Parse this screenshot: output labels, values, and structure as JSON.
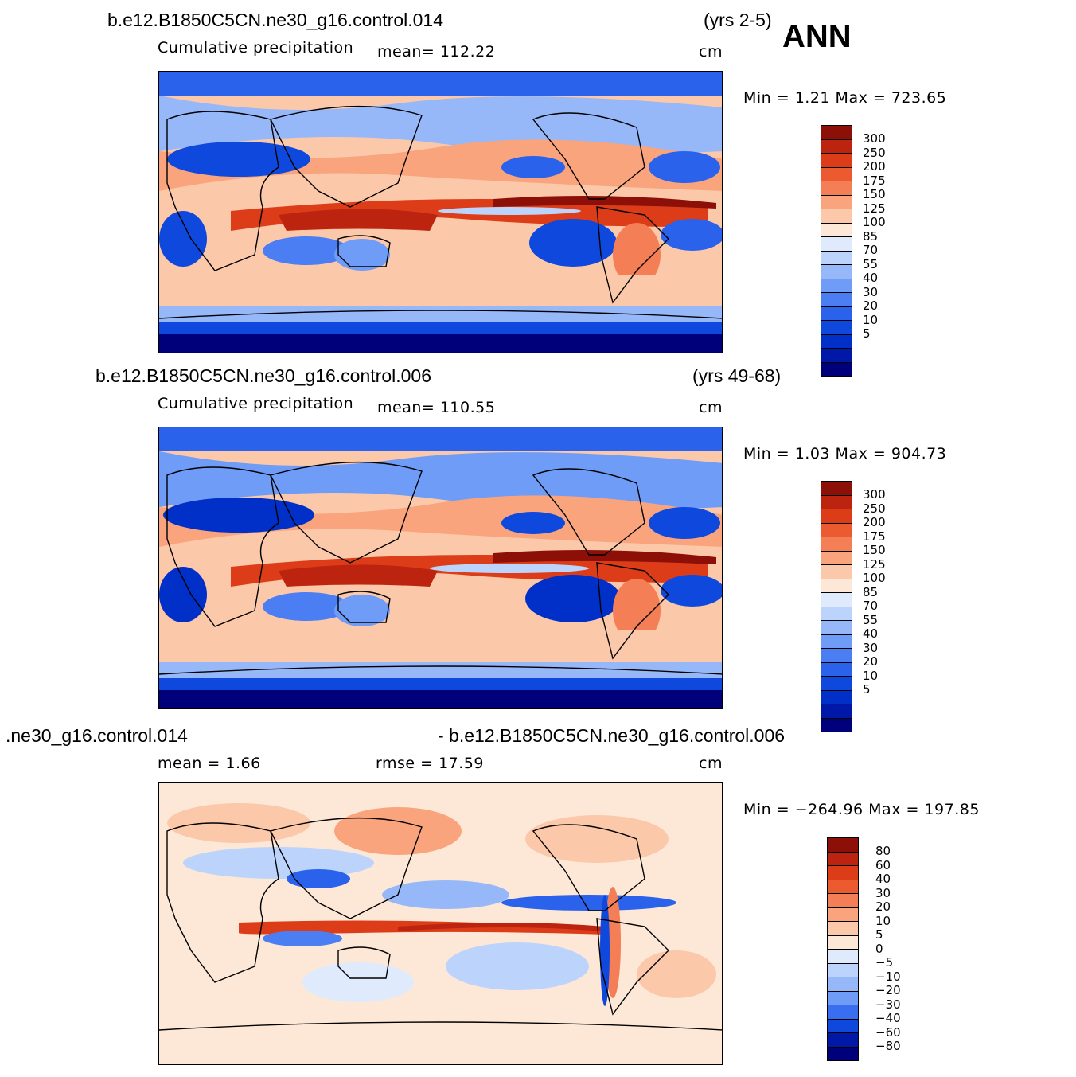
{
  "season": "ANN",
  "colors": {
    "abs_scale": [
      "#00007a",
      "#0018a8",
      "#0030c8",
      "#0f48dc",
      "#2a62ec",
      "#4a7ef2",
      "#6e9cf6",
      "#96b8f8",
      "#bcd4fb",
      "#dfeafd",
      "#fde8d8",
      "#fcc8aa",
      "#f9a47c",
      "#f47e55",
      "#ec5a30",
      "#dc3c18",
      "#bc2410",
      "#8c0f08"
    ],
    "diff_scale": [
      "#00007a",
      "#0018a8",
      "#0f48dc",
      "#3a6ef0",
      "#6e9cf6",
      "#96b8f8",
      "#bcd4fb",
      "#dfeafd",
      "#fde8d8",
      "#fcc8aa",
      "#f9a47c",
      "#f47e55",
      "#ec5a30",
      "#dc3c18",
      "#bc2410",
      "#8c0f08"
    ]
  },
  "panels": [
    {
      "case_left": "b.e12.B1850C5CN.ne30_g16.control.014",
      "case_right": "(yrs 2-5)",
      "variable": "Cumulative precipitation",
      "mean_text": "mean=  112.22",
      "units": "cm",
      "minmax": "Min  =    1.21  Max  =  723.65",
      "colorbar_labels": [
        "300",
        "250",
        "200",
        "175",
        "150",
        "125",
        "100",
        "85",
        "70",
        "55",
        "40",
        "30",
        "20",
        "10",
        "5"
      ]
    },
    {
      "case_left": "b.e12.B1850C5CN.ne30_g16.control.006",
      "case_right": "(yrs 49-68)",
      "variable": "Cumulative precipitation",
      "mean_text": "mean=  110.55",
      "units": "cm",
      "minmax": "Min  =    1.03  Max  =  904.73",
      "colorbar_labels": [
        "300",
        "250",
        "200",
        "175",
        "150",
        "125",
        "100",
        "85",
        "70",
        "55",
        "40",
        "30",
        "20",
        "10",
        "5"
      ]
    },
    {
      "case_left": ".ne30_g16.control.014",
      "case_right": "- b.e12.B1850C5CN.ne30_g16.control.006",
      "mean_text": "mean  =     1.66",
      "rmse_text": "rmse  =    17.59",
      "units": "cm",
      "minmax": "Min  = −264.96  Max  =  197.85",
      "colorbar_labels": [
        "80",
        "60",
        "40",
        "30",
        "20",
        "10",
        "5",
        "0",
        "−5",
        "−10",
        "−20",
        "−30",
        "−40",
        "−60",
        "−80"
      ]
    }
  ]
}
